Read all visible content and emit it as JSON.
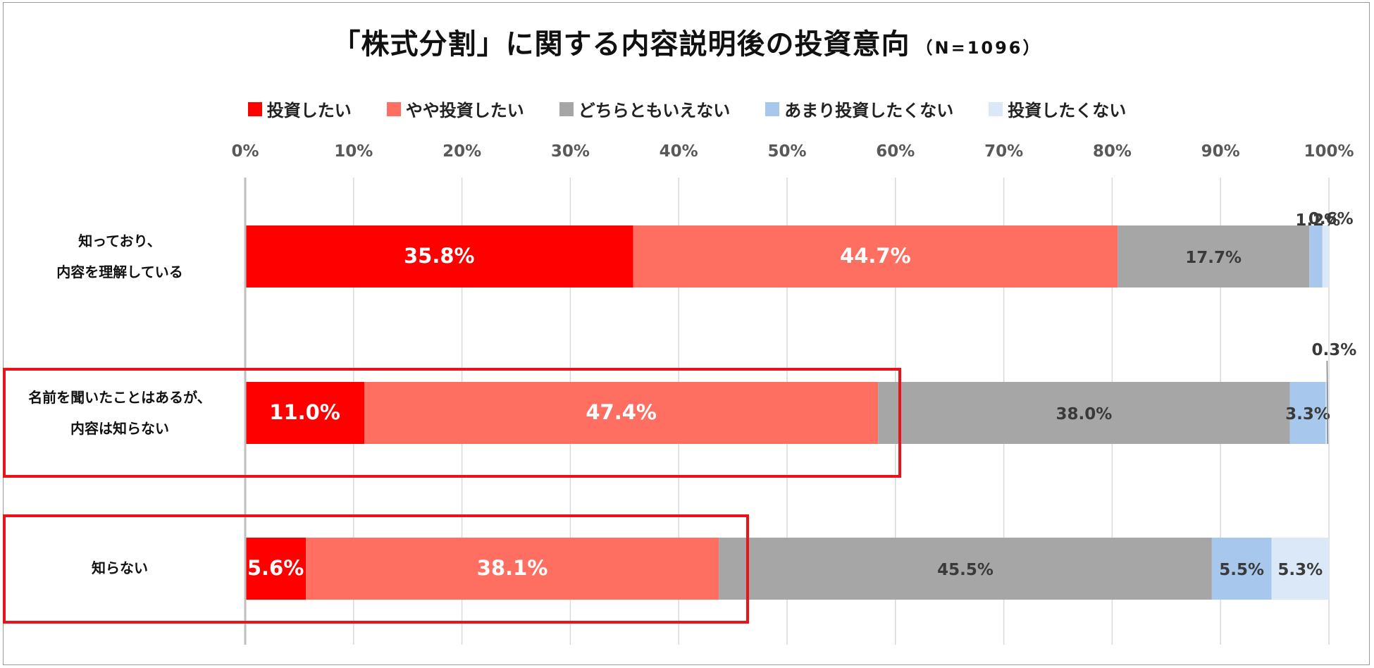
{
  "title": "「株式分割」に関する内容説明後の投資意向",
  "title_n": "（N=1096）",
  "colors": {
    "series": [
      "#ff0000",
      "#ff6f61",
      "#a6a6a6",
      "#a7c8ec",
      "#dbe8f7"
    ],
    "highlight_border": "#e8141c",
    "grid": "#d9d9d9",
    "axis": "#bfbfbf"
  },
  "chart_data": {
    "type": "bar",
    "orientation": "horizontal",
    "stacked": "percent",
    "title": "「株式分割」に関する内容説明後の投資意向",
    "subtitle": "（N=1096）",
    "categories": [
      "知っており、\n内容を理解している",
      "名前を聞いたことはあるが、\n内容は知らない",
      "知らない"
    ],
    "series": [
      {
        "name": "投資したい",
        "values": [
          35.8,
          11.0,
          5.6
        ]
      },
      {
        "name": "やや投資したい",
        "values": [
          44.7,
          47.4,
          38.1
        ]
      },
      {
        "name": "どちらともいえない",
        "values": [
          17.7,
          38.0,
          45.5
        ]
      },
      {
        "name": "あまり投資したくない",
        "values": [
          1.2,
          3.3,
          5.5
        ]
      },
      {
        "name": "投資したくない",
        "values": [
          0.6,
          0.3,
          5.3
        ]
      }
    ],
    "data_labels": [
      [
        "35.8%",
        "44.7%",
        "17.7%",
        "1.2%",
        "0.6%"
      ],
      [
        "11.0%",
        "47.4%",
        "38.0%",
        "3.3%",
        "0.3%"
      ],
      [
        "5.6%",
        "38.1%",
        "45.5%",
        "5.5%",
        "5.3%"
      ]
    ],
    "xlim": [
      0,
      100
    ],
    "ticks": [
      "0%",
      "10%",
      "20%",
      "30%",
      "40%",
      "50%",
      "60%",
      "70%",
      "80%",
      "90%",
      "100%"
    ],
    "grid": true,
    "legend_position": "top",
    "highlighted_categories": [
      "名前を聞いたことはあるが、\n内容は知らない",
      "知らない"
    ]
  }
}
